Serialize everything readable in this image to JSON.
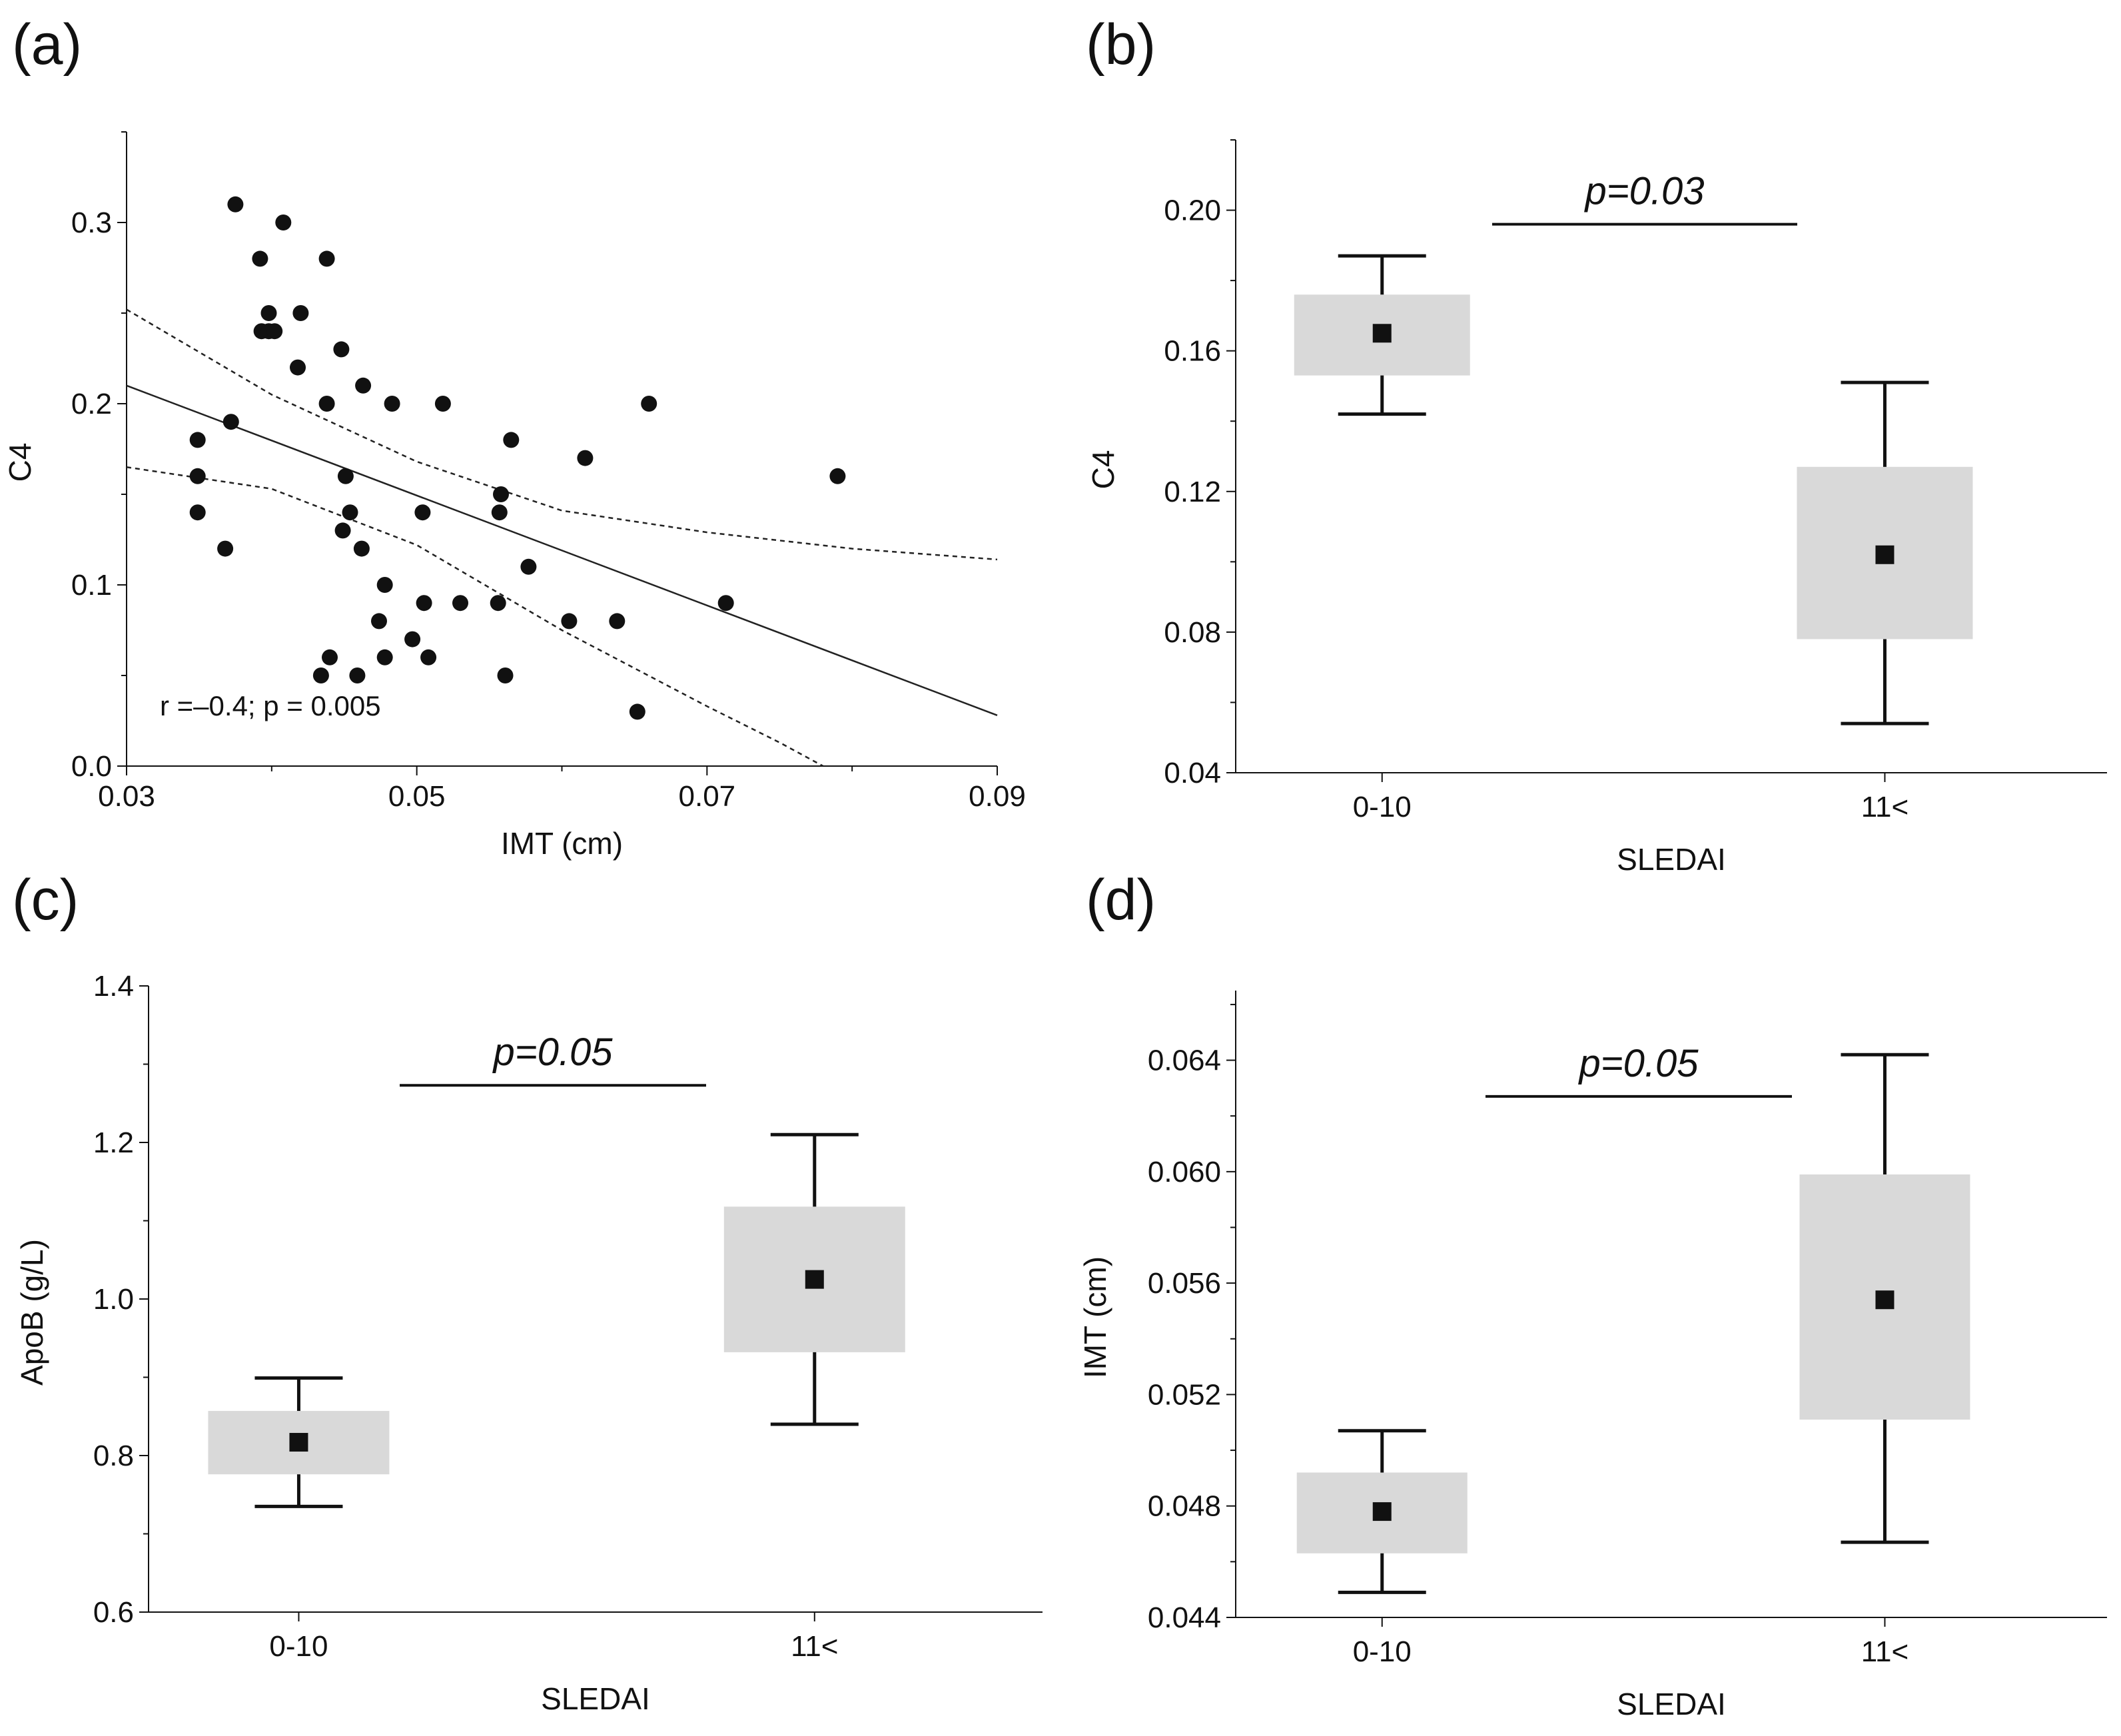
{
  "chart_data": [
    {
      "panel_label": "(a)",
      "type": "scatter",
      "xlabel": "IMT (cm)",
      "ylabel": "C4",
      "xlim": [
        0.03,
        0.09
      ],
      "ylim": [
        0.0,
        0.35
      ],
      "xticks": [
        0.03,
        0.05,
        0.07,
        0.09
      ],
      "xtick_labels": [
        "0.03",
        "0.05",
        "0.07",
        "0.09"
      ],
      "yticks": [
        0.0,
        0.1,
        0.2,
        0.3
      ],
      "ytick_labels": [
        "0.0",
        "0.1",
        "0.2",
        "0.3"
      ],
      "annotation": "r =–0.4; p = 0.005",
      "regression_line": {
        "x": [
          0.03,
          0.09
        ],
        "y": [
          0.21,
          0.028
        ]
      },
      "confidence_band_upper": {
        "x": [
          0.03,
          0.04,
          0.05,
          0.06,
          0.07,
          0.08,
          0.09
        ],
        "y": [
          0.252,
          0.205,
          0.168,
          0.141,
          0.129,
          0.12,
          0.114
        ]
      },
      "confidence_band_lower": {
        "x": [
          0.03,
          0.04,
          0.05,
          0.06,
          0.07,
          0.075,
          0.078
        ],
        "y": [
          0.165,
          0.153,
          0.122,
          0.075,
          0.033,
          0.013,
          0.0
        ]
      },
      "points": [
        [
          0.0375,
          0.31
        ],
        [
          0.0392,
          0.28
        ],
        [
          0.0408,
          0.3
        ],
        [
          0.0438,
          0.28
        ],
        [
          0.0393,
          0.24
        ],
        [
          0.0398,
          0.24
        ],
        [
          0.0398,
          0.25
        ],
        [
          0.0402,
          0.24
        ],
        [
          0.042,
          0.25
        ],
        [
          0.0418,
          0.22
        ],
        [
          0.0448,
          0.23
        ],
        [
          0.0372,
          0.19
        ],
        [
          0.0438,
          0.2
        ],
        [
          0.0463,
          0.21
        ],
        [
          0.0483,
          0.2
        ],
        [
          0.0518,
          0.2
        ],
        [
          0.0349,
          0.18
        ],
        [
          0.0349,
          0.16
        ],
        [
          0.0349,
          0.14
        ],
        [
          0.0368,
          0.12
        ],
        [
          0.0451,
          0.16
        ],
        [
          0.0454,
          0.14
        ],
        [
          0.0449,
          0.13
        ],
        [
          0.0462,
          0.12
        ],
        [
          0.0504,
          0.14
        ],
        [
          0.0565,
          0.18
        ],
        [
          0.0558,
          0.15
        ],
        [
          0.0557,
          0.14
        ],
        [
          0.0616,
          0.17
        ],
        [
          0.066,
          0.2
        ],
        [
          0.079,
          0.16
        ],
        [
          0.0478,
          0.1
        ],
        [
          0.0474,
          0.08
        ],
        [
          0.0478,
          0.06
        ],
        [
          0.0497,
          0.07
        ],
        [
          0.0505,
          0.09
        ],
        [
          0.0508,
          0.06
        ],
        [
          0.053,
          0.09
        ],
        [
          0.0556,
          0.09
        ],
        [
          0.0577,
          0.11
        ],
        [
          0.0605,
          0.08
        ],
        [
          0.0638,
          0.08
        ],
        [
          0.0713,
          0.09
        ],
        [
          0.044,
          0.06
        ],
        [
          0.0434,
          0.05
        ],
        [
          0.0459,
          0.05
        ],
        [
          0.0561,
          0.05
        ],
        [
          0.0652,
          0.03
        ]
      ]
    },
    {
      "panel_label": "(b)",
      "type": "box",
      "xlabel": "SLEDAI",
      "ylabel": "C4",
      "categories": [
        "0-10",
        "11<"
      ],
      "ylim": [
        0.04,
        0.22
      ],
      "yticks": [
        0.04,
        0.08,
        0.12,
        0.16,
        0.2
      ],
      "ytick_labels": [
        "0.04",
        "0.08",
        "0.12",
        "0.16",
        "0.20"
      ],
      "boxes": [
        {
          "category": "0-10",
          "mean": 0.165,
          "box_low": 0.153,
          "box_high": 0.176,
          "whisker_low": 0.142,
          "whisker_high": 0.187
        },
        {
          "category": "11<",
          "mean": 0.102,
          "box_low": 0.078,
          "box_high": 0.127,
          "whisker_low": 0.054,
          "whisker_high": 0.151
        }
      ],
      "significance": {
        "label": "p=0.03",
        "level": 0.196
      }
    },
    {
      "panel_label": "(c)",
      "type": "box",
      "xlabel": "SLEDAI",
      "ylabel": "ApoB (g/L)",
      "categories": [
        "0-10",
        "11<"
      ],
      "ylim": [
        0.6,
        1.4
      ],
      "yticks": [
        0.6,
        0.8,
        1.0,
        1.2,
        1.4
      ],
      "ytick_labels": [
        "0.6",
        "0.8",
        "1.0",
        "1.2",
        "1.4"
      ],
      "boxes": [
        {
          "category": "0-10",
          "mean": 0.817,
          "box_low": 0.776,
          "box_high": 0.857,
          "whisker_low": 0.735,
          "whisker_high": 0.899
        },
        {
          "category": "11<",
          "mean": 1.025,
          "box_low": 0.932,
          "box_high": 1.118,
          "whisker_low": 0.84,
          "whisker_high": 1.21
        }
      ],
      "significance": {
        "label": "p=0.05",
        "level": 1.273
      }
    },
    {
      "panel_label": "(d)",
      "type": "box",
      "xlabel": "SLEDAI",
      "ylabel": "IMT (cm)",
      "categories": [
        "0-10",
        "11<"
      ],
      "ylim": [
        0.044,
        0.0665
      ],
      "yticks": [
        0.044,
        0.048,
        0.052,
        0.056,
        0.06,
        0.064
      ],
      "ytick_labels": [
        "0.044",
        "0.048",
        "0.052",
        "0.056",
        "0.060",
        "0.064"
      ],
      "boxes": [
        {
          "category": "0-10",
          "mean": 0.0478,
          "box_low": 0.0463,
          "box_high": 0.0492,
          "whisker_low": 0.0449,
          "whisker_high": 0.0507
        },
        {
          "category": "11<",
          "mean": 0.0554,
          "box_low": 0.0511,
          "box_high": 0.0599,
          "whisker_low": 0.0467,
          "whisker_high": 0.0642
        }
      ],
      "significance": {
        "label": "p=0.05",
        "level": 0.0627
      }
    }
  ],
  "colors": {
    "box_fill": "#d9d9d9",
    "ink": "#111111",
    "band": "#222222"
  }
}
